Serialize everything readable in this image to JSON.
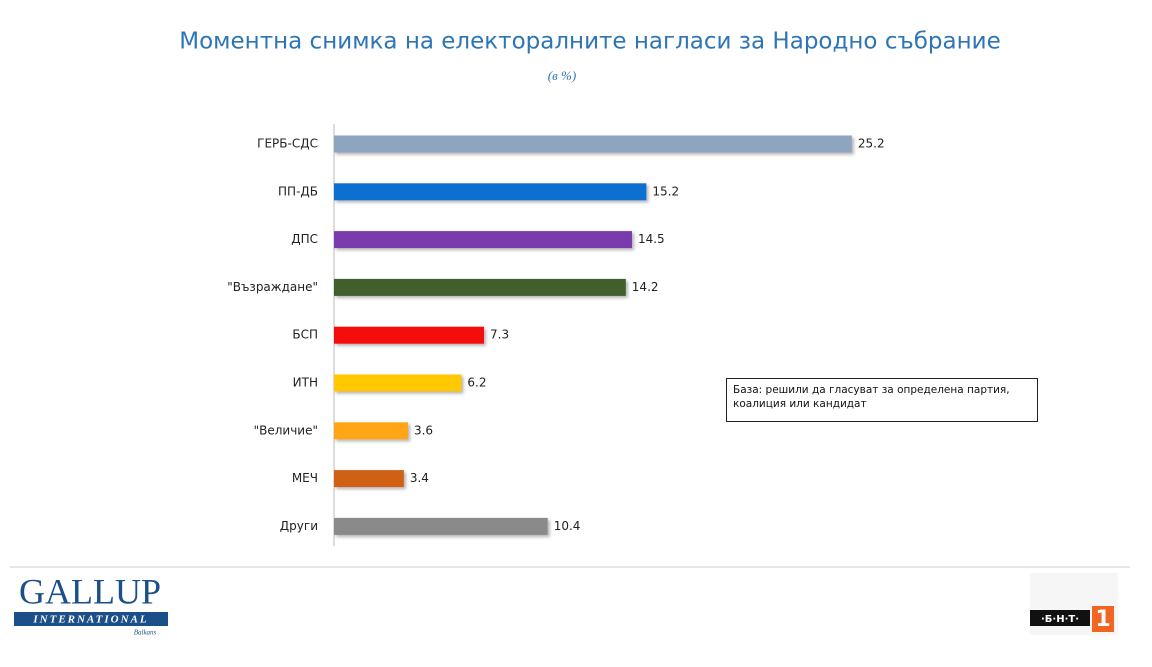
{
  "chart_data": {
    "type": "hbar",
    "title": "Моментна снимка на електоралните нагласи за Народно събрание",
    "subtitle": "(в %)",
    "categories": [
      "ГЕРБ-СДС",
      "ПП-ДБ",
      "ДПС",
      "\"Възраждане\"",
      "БСП",
      "ИТН",
      "\"Величие\"",
      "МЕЧ",
      "Други"
    ],
    "values": [
      25.2,
      15.2,
      14.5,
      14.2,
      7.3,
      6.2,
      3.6,
      3.4,
      10.4
    ],
    "colors": [
      "#8fa4bf",
      "#0f70d0",
      "#7a3aad",
      "#3f5e2a",
      "#f41010",
      "#ffc800",
      "#ffa514",
      "#d06018",
      "#8a8a8a"
    ],
    "annotation": "База: решили да гласуват за определена партия, коалиция или кандидат",
    "source_logo": {
      "name": "GALLUP",
      "sub": "INTERNATIONAL",
      "region": "Balkans"
    },
    "broadcaster_logo": {
      "name": "·Б·Н·Т·",
      "number": "1"
    }
  }
}
